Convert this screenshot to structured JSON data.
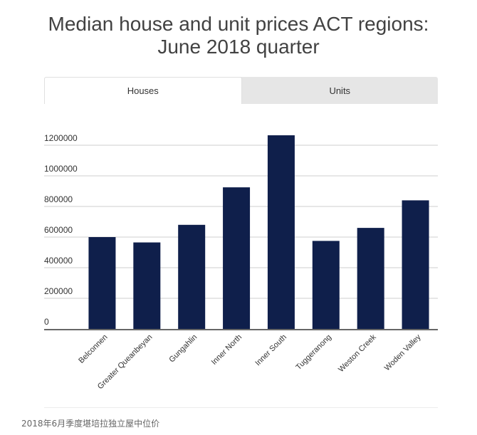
{
  "title_line1": "Median house and unit prices ACT regions:",
  "title_line2": "June 2018 quarter",
  "tabs": [
    "Houses",
    "Units"
  ],
  "active_tab": "Houses",
  "caption": "2018年6月季度堪培拉独立屋中位价",
  "colors": {
    "bar": "#0f1f4b",
    "grid": "#cfcfcf",
    "axis": "#333333",
    "tab_bg": "#e6e6e6"
  },
  "chart_data": {
    "type": "bar",
    "title": "Median house and unit prices ACT regions: June 2018 quarter",
    "categories": [
      "Belconnen",
      "Greater Queanbeyan",
      "Gungahlin",
      "Inner North",
      "Inner South",
      "Tuggeranong",
      "Weston Creek",
      "Woden Valley"
    ],
    "values": [
      600000,
      565000,
      680000,
      925000,
      1265000,
      575000,
      660000,
      840000
    ],
    "ylim": [
      0,
      1200000
    ],
    "yticks": [
      "0",
      "200000",
      "400000",
      "600000",
      "800000",
      "1000000",
      "1200000"
    ],
    "xlabel": "",
    "ylabel": "",
    "grid": true,
    "legend": "none"
  }
}
